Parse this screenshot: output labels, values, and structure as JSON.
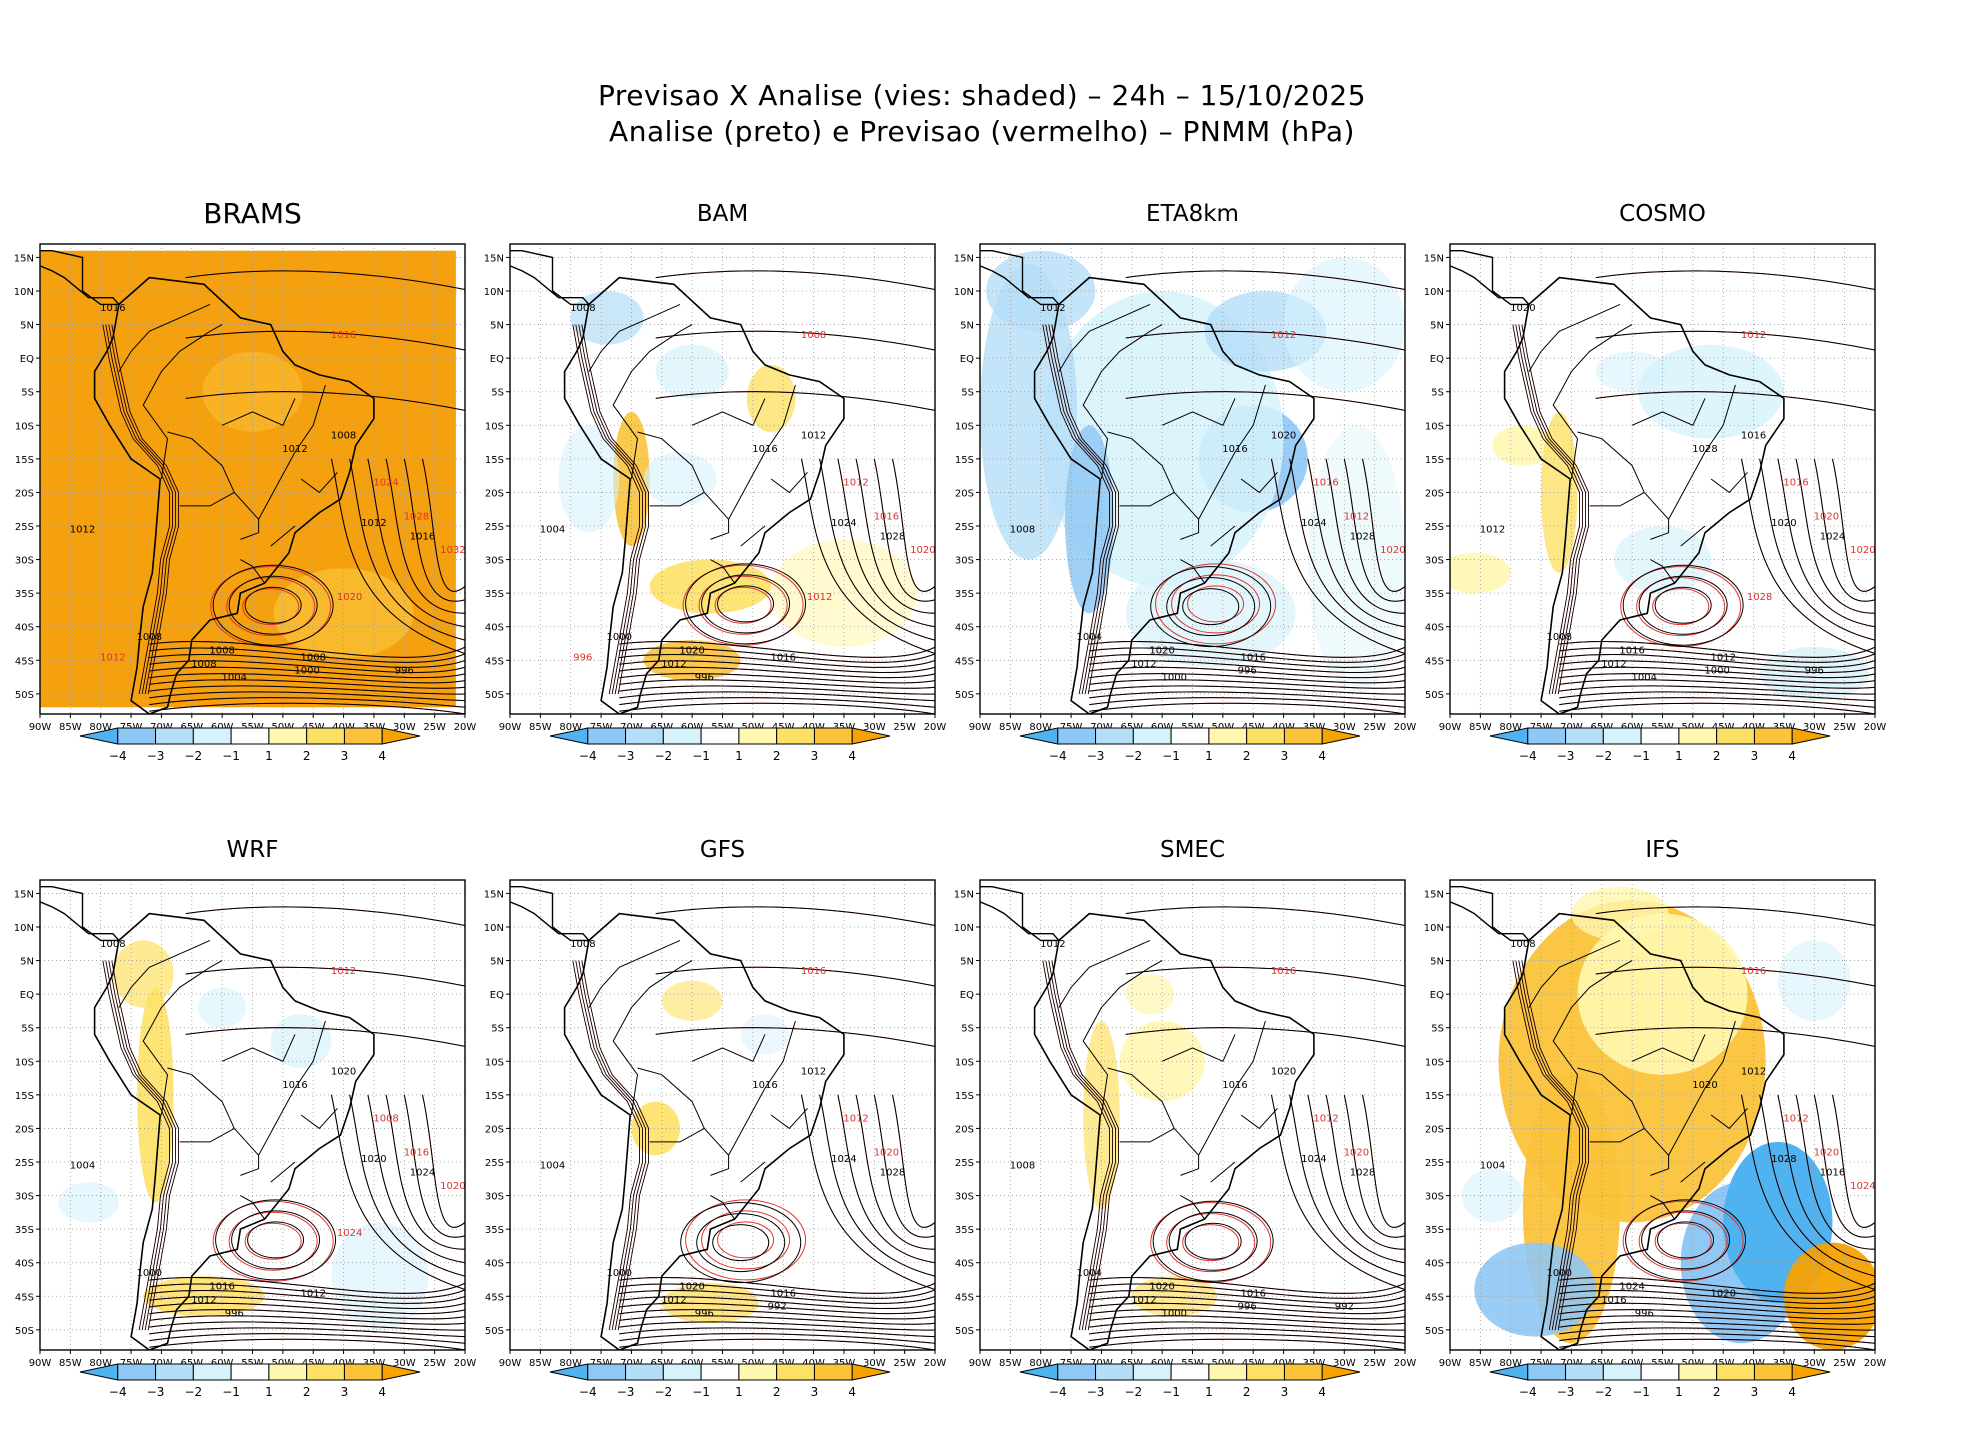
{
  "header": {
    "line1": "Previsao X Analise (vies: shaded) – 24h – 15/10/2025",
    "line2": "Analise (preto) e Previsao (vermelho) – PNMM (hPa)"
  },
  "axes": {
    "lat_labels": [
      "15N",
      "10N",
      "5N",
      "EQ",
      "5S",
      "10S",
      "15S",
      "20S",
      "25S",
      "30S",
      "35S",
      "40S",
      "45S",
      "50S"
    ],
    "lon_labels": [
      "90W",
      "85W",
      "80W",
      "75W",
      "70W",
      "65W",
      "60W",
      "55W",
      "50W",
      "45W",
      "40W",
      "35W",
      "30W",
      "25W",
      "20W"
    ]
  },
  "colorbar": {
    "labels": [
      "−4",
      "−3",
      "−2",
      "−1",
      "1",
      "2",
      "3",
      "4"
    ],
    "colors": [
      "#4eb3f0",
      "#8fc8f5",
      "#b4ddf8",
      "#d6f2fb",
      "#ffffff",
      "#fff7b0",
      "#fde165",
      "#fbc33a",
      "#f6a200"
    ]
  },
  "colors": {
    "analysis": "#000000",
    "forecast": "#e0322e",
    "ocean_warm": "#f5a00f"
  },
  "panels": [
    {
      "name": "BRAMS",
      "labels": {
        "black": [
          "1008",
          "1008",
          "1008",
          "1012",
          "1016",
          "1012",
          "1008",
          "1016",
          "1012",
          "1008",
          "1004",
          "1000",
          "996"
        ],
        "red": [
          "1016",
          "1024",
          "1028",
          "1032",
          "1020",
          "1012"
        ]
      }
    },
    {
      "name": "BAM",
      "labels": {
        "black": [
          "1012",
          "1016",
          "1020",
          "1024",
          "1028",
          "1016",
          "1012",
          "1008",
          "1004",
          "1000",
          "996"
        ],
        "red": [
          "1008",
          "1012",
          "1016",
          "1020",
          "1012",
          "996"
        ]
      }
    },
    {
      "name": "ETA8km",
      "labels": {
        "black": [
          "1012",
          "1016",
          "1020",
          "1024",
          "1028",
          "1016",
          "1020",
          "1012",
          "1008",
          "1004",
          "1000",
          "996"
        ],
        "red": [
          "1012",
          "1016",
          "1012",
          "1020"
        ]
      }
    },
    {
      "name": "COSMO",
      "labels": {
        "black": [
          "1012",
          "1012",
          "1016",
          "1020",
          "1024",
          "1028",
          "1016",
          "1020",
          "1012",
          "1008",
          "1004",
          "1000",
          "996"
        ],
        "red": [
          "1012",
          "1016",
          "1020",
          "1020",
          "1028"
        ]
      }
    },
    {
      "name": "WRF",
      "labels": {
        "black": [
          "1012",
          "1012",
          "1016",
          "1020",
          "1024",
          "1016",
          "1020",
          "1008",
          "1004",
          "1000",
          "996"
        ],
        "red": [
          "1012",
          "1008",
          "1016",
          "1020",
          "1024"
        ]
      }
    },
    {
      "name": "GFS",
      "labels": {
        "black": [
          "1012",
          "1016",
          "1020",
          "1024",
          "1028",
          "1016",
          "1012",
          "1008",
          "1004",
          "1000",
          "996",
          "992"
        ],
        "red": [
          "1016",
          "1012",
          "1020"
        ]
      }
    },
    {
      "name": "SMEC",
      "labels": {
        "black": [
          "1012",
          "1016",
          "1020",
          "1024",
          "1028",
          "1016",
          "1020",
          "1012",
          "1008",
          "1004",
          "1000",
          "996",
          "992"
        ],
        "red": [
          "1016",
          "1012",
          "1020"
        ]
      }
    },
    {
      "name": "IFS",
      "labels": {
        "black": [
          "1016",
          "1020",
          "1024",
          "1028",
          "1016",
          "1020",
          "1012",
          "1008",
          "1004",
          "1000",
          "996"
        ],
        "red": [
          "1016",
          "1012",
          "1020",
          "1024"
        ]
      }
    }
  ]
}
